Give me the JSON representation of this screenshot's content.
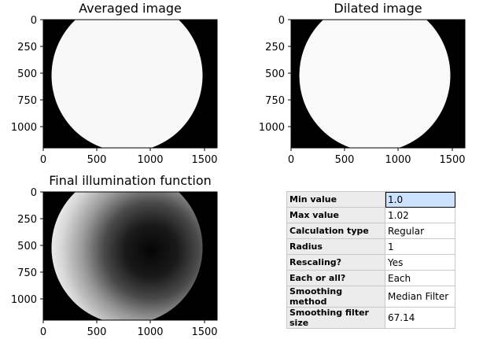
{
  "plots": {
    "averaged": {
      "title": "Averaged image"
    },
    "dilated": {
      "title": "Dilated image"
    },
    "final": {
      "title": "Final illumination function"
    },
    "x_ticks": [
      "0",
      "500",
      "1000",
      "1500"
    ],
    "y_ticks": [
      "0",
      "250",
      "500",
      "750",
      "1000"
    ]
  },
  "settings": {
    "rows": [
      {
        "key": "Min value",
        "value": "1.0"
      },
      {
        "key": "Max value",
        "value": "1.02"
      },
      {
        "key": "Calculation type",
        "value": "Regular"
      },
      {
        "key": "Radius",
        "value": "1"
      },
      {
        "key": "Rescaling?",
        "value": "Yes"
      },
      {
        "key": "Each or all?",
        "value": "Each"
      },
      {
        "key": "Smoothing method",
        "value": "Median Filter"
      },
      {
        "key": "Smoothing filter size",
        "value": "67.14"
      }
    ]
  }
}
